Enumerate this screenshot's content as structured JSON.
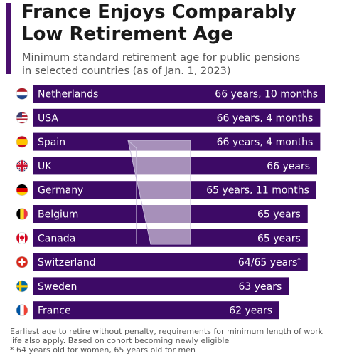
{
  "header": {
    "title": "France Enjoys Comparably\nLow Retirement Age",
    "subtitle": "Minimum standard retirement age for public pensions\nin selected countries (as of Jan. 1, 2023)"
  },
  "colors": {
    "accent": "#4b0f6e",
    "bar": "#3d0a66",
    "bar_text": "#ffffff"
  },
  "chart_data": {
    "type": "bar",
    "orientation": "horizontal",
    "categories": [
      "Netherlands",
      "USA",
      "Spain",
      "UK",
      "Germany",
      "Belgium",
      "Canada",
      "Switzerland",
      "Sweden",
      "France"
    ],
    "flags": [
      "netherlands-flag-icon",
      "usa-flag-icon",
      "spain-flag-icon",
      "uk-flag-icon",
      "germany-flag-icon",
      "belgium-flag-icon",
      "canada-flag-icon",
      "switzerland-flag-icon",
      "sweden-flag-icon",
      "france-flag-icon"
    ],
    "values": [
      66.83,
      66.33,
      66.33,
      66,
      65.92,
      65,
      65,
      65,
      63,
      62
    ],
    "value_labels": [
      "66 years, 10 months",
      "66 years, 4 months",
      "66 years, 4 months",
      "66 years",
      "65 years, 11 months",
      "65 years",
      "65 years",
      "64/65 years",
      "63 years",
      "62 years"
    ],
    "value_label_marks": [
      "",
      "",
      "",
      "",
      "",
      "",
      "",
      "*",
      "",
      ""
    ],
    "unit": "years",
    "title": "",
    "xlabel": "",
    "ylabel": ""
  },
  "footnotes": {
    "note": "Earliest age to retire without penalty, requirements for minimum length of work",
    "note2": "life also apply. Based on cohort becoming newly eligible",
    "asterisk": "* 64 years old for women, 65 years old for men"
  }
}
